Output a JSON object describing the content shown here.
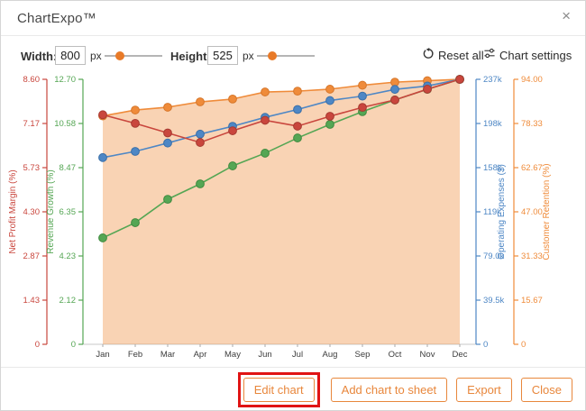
{
  "dialog": {
    "title": "ChartExpo™",
    "close_glyph": "×"
  },
  "controls": {
    "width": {
      "label": "Width:",
      "value": "800",
      "unit": "px",
      "slider_percent": 18
    },
    "height": {
      "label": "Height:",
      "value": "525",
      "unit": "px",
      "slider_percent": 18
    },
    "reset_label": "Reset all",
    "settings_label": "Chart settings"
  },
  "footer": {
    "buttons": [
      {
        "label": "Edit chart",
        "highlighted": true
      },
      {
        "label": "Add chart to sheet",
        "highlighted": false
      },
      {
        "label": "Export",
        "highlighted": false
      },
      {
        "label": "Close",
        "highlighted": false
      }
    ]
  },
  "chart_data": {
    "type": "line",
    "categories": [
      "Jan",
      "Feb",
      "Mar",
      "Apr",
      "May",
      "Jun",
      "Jul",
      "Aug",
      "Sep",
      "Oct",
      "Nov",
      "Dec"
    ],
    "series": [
      {
        "name": "Net Profit Margin (%)",
        "color": "#c9463d",
        "dot_stroke": "#a63a31",
        "axis_side": "left",
        "axis_max": 8.6,
        "ticks": [
          "8.60",
          "7.17",
          "5.73",
          "4.30",
          "2.87",
          "1.43",
          "0"
        ],
        "values": [
          7.45,
          7.17,
          6.86,
          6.55,
          6.93,
          7.27,
          7.08,
          7.4,
          7.69,
          7.93,
          8.28,
          8.6
        ]
      },
      {
        "name": "Revenue Growth (%)",
        "color": "#55a654",
        "dot_stroke": "#3f8a3f",
        "axis_side": "left",
        "axis_max": 12.7,
        "ticks": [
          "12.70",
          "10.58",
          "8.47",
          "6.35",
          "4.23",
          "2.12",
          "0"
        ],
        "values": [
          5.1,
          5.83,
          6.95,
          7.69,
          8.55,
          9.16,
          9.89,
          10.54,
          11.15,
          11.71,
          12.22,
          12.7
        ]
      },
      {
        "name": "Operating Expenses ($)",
        "color": "#4e87c5",
        "dot_stroke": "#3a6fa8",
        "axis_side": "right",
        "axis_max": 237000,
        "ticks": [
          "237k",
          "198k",
          "158k",
          "119k",
          "79.0k",
          "39.5k",
          "0"
        ],
        "values": [
          167000,
          172500,
          180000,
          188000,
          195000,
          203000,
          210000,
          218000,
          222000,
          228000,
          231000,
          237000
        ]
      },
      {
        "name": "Customer Retention (%)",
        "color": "#ef8b3a",
        "dot_stroke": "#d6762a",
        "area": true,
        "area_fill": "#ef8b3a",
        "area_opacity": 0.38,
        "axis_side": "right",
        "axis_max": 94.0,
        "ticks": [
          "94.00",
          "78.33",
          "62.67",
          "47.00",
          "31.33",
          "15.67",
          "0"
        ],
        "values": [
          81.0,
          83.1,
          84.1,
          86.0,
          87.0,
          89.5,
          89.8,
          90.5,
          91.9,
          93.0,
          93.5,
          94.0
        ]
      }
    ],
    "xlabel": "",
    "ylabel": "",
    "title": "",
    "legend": "none",
    "grid": false
  }
}
